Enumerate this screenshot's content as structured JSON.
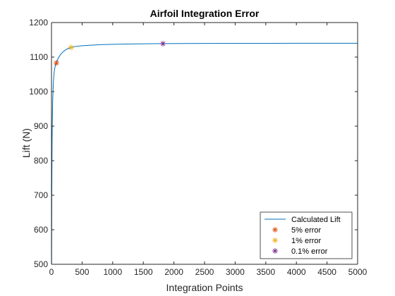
{
  "chart_data": {
    "type": "line",
    "title": "Airfoil Integration Error",
    "xlabel": "Integration Points",
    "ylabel": "Lift (N)",
    "xlim": [
      0,
      5000
    ],
    "ylim": [
      500,
      1200
    ],
    "xticks": [
      0,
      500,
      1000,
      1500,
      2000,
      2500,
      3000,
      3500,
      4000,
      4500,
      5000
    ],
    "yticks": [
      500,
      600,
      700,
      800,
      900,
      1000,
      1100,
      1200
    ],
    "grid": false,
    "legend_position": "bottom-right",
    "series": [
      {
        "name": "Calculated Lift",
        "kind": "line",
        "color": "#0072BD",
        "x": [
          2,
          5,
          10,
          15,
          20,
          30,
          40,
          50,
          60,
          70,
          80,
          100,
          120,
          150,
          200,
          250,
          320,
          400,
          500,
          600,
          800,
          1000,
          1300,
          1800,
          2500,
          3000,
          4000,
          5000
        ],
        "y": [
          500,
          700,
          860,
          930,
          975,
          1025,
          1050,
          1065,
          1073,
          1079,
          1083,
          1093,
          1100,
          1108,
          1117,
          1123,
          1128,
          1131,
          1133,
          1134,
          1136,
          1137,
          1138,
          1139,
          1139.5,
          1139.8,
          1140,
          1140
        ]
      },
      {
        "name": "5% error",
        "kind": "marker",
        "color": "#D95319",
        "x": [
          80
        ],
        "y": [
          1083
        ]
      },
      {
        "name": "1% error",
        "kind": "marker",
        "color": "#EDB120",
        "x": [
          320
        ],
        "y": [
          1128
        ]
      },
      {
        "name": "0.1% error",
        "kind": "marker",
        "color": "#7E2F8E",
        "x": [
          1820
        ],
        "y": [
          1139
        ]
      }
    ]
  }
}
